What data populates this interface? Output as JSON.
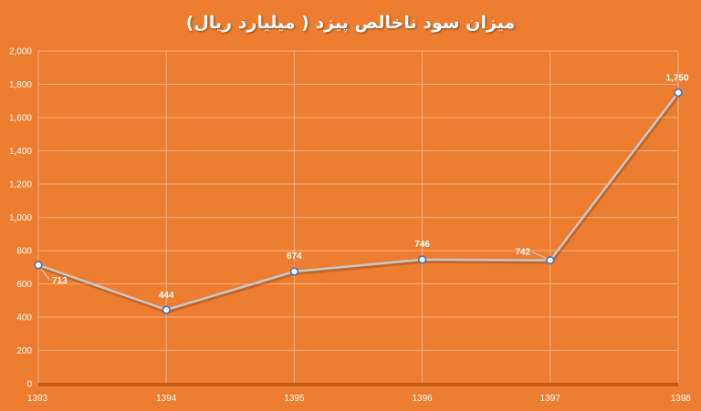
{
  "chart_data": {
    "type": "line",
    "title": "میزان سود ناخالص پیزد  ( میلیارد ریال)",
    "categories": [
      "1393",
      "1394",
      "1395",
      "1396",
      "1397",
      "1398"
    ],
    "series": [
      {
        "values": [
          713,
          444,
          674,
          746,
          742,
          1750
        ]
      }
    ],
    "data_labels": [
      "713",
      "444",
      "674",
      "746",
      "742",
      "1,750"
    ],
    "y_ticks": [
      "0",
      "200",
      "400",
      "600",
      "800",
      "1,000",
      "1,200",
      "1,400",
      "1,600",
      "1,800",
      "2,000"
    ],
    "ylim": [
      0,
      2000
    ],
    "grid": true,
    "legend": "none",
    "colors": {
      "background": "#ED7D31",
      "line": "#C8C8C8",
      "marker_fill": "#FFFFFF",
      "marker_stroke": "#4472C4",
      "grid": "#F4B183",
      "axis": "#C55A11"
    }
  }
}
